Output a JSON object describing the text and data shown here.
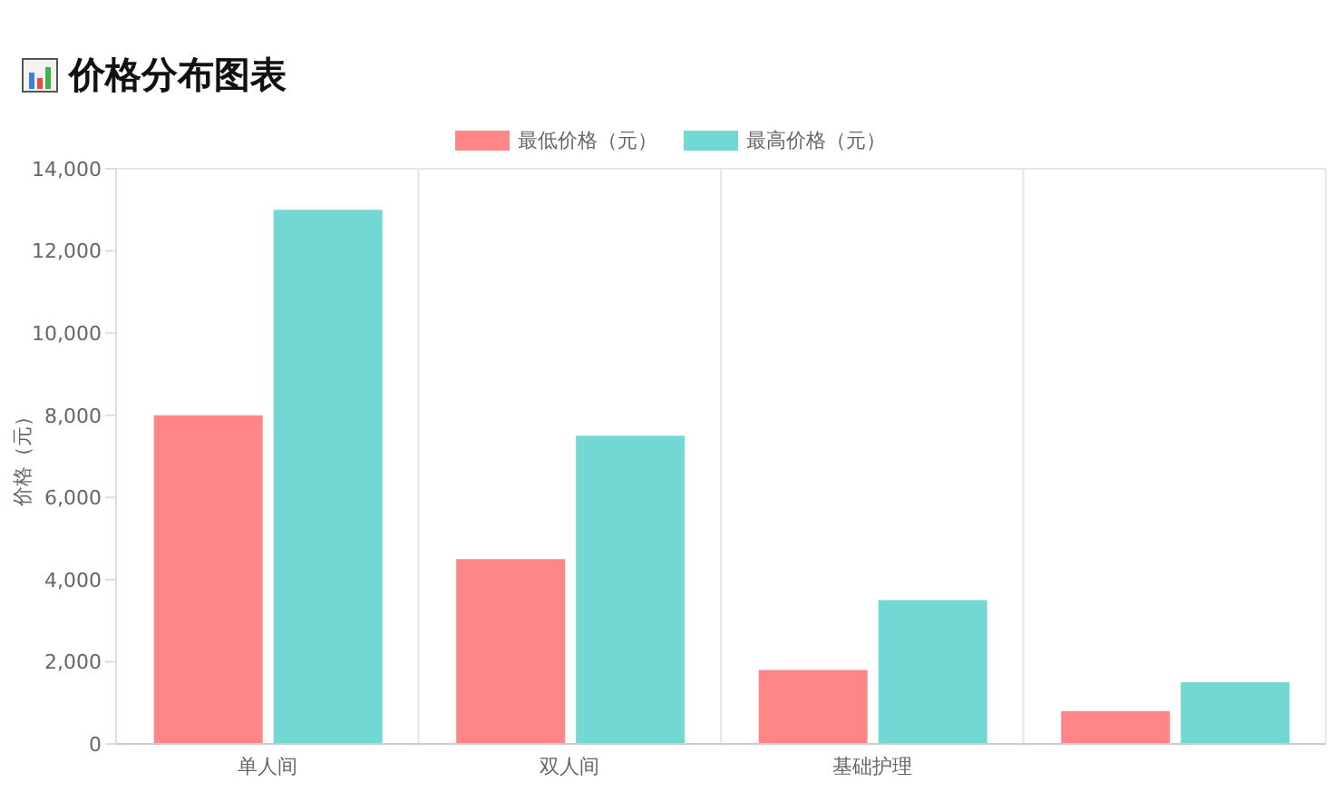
{
  "chart_data": {
    "type": "bar",
    "title": "价格分布图表",
    "ylabel": "价格（元）",
    "categories": [
      "单人间",
      "双人间",
      "基础护理",
      null
    ],
    "series": [
      {
        "name": "最低价格（元）",
        "color": "#ff8686",
        "values": [
          8000,
          4500,
          1800,
          800
        ]
      },
      {
        "name": "最高价格（元）",
        "color": "#73d7d3",
        "values": [
          13000,
          7500,
          3500,
          1500
        ]
      }
    ],
    "ylim": [
      0,
      14000
    ],
    "yticks": [
      0,
      {
        "value": 2000,
        "label": "2,000"
      },
      {
        "value": 4000,
        "label": "4,000"
      },
      {
        "value": 6000,
        "label": "6,000"
      },
      {
        "value": 8000,
        "label": "8,000"
      },
      {
        "value": 10000,
        "label": "10,000"
      },
      {
        "value": 12000,
        "label": "12,000"
      },
      {
        "value": 14000,
        "label": "14,000"
      }
    ],
    "grid": true,
    "legend": "top"
  }
}
